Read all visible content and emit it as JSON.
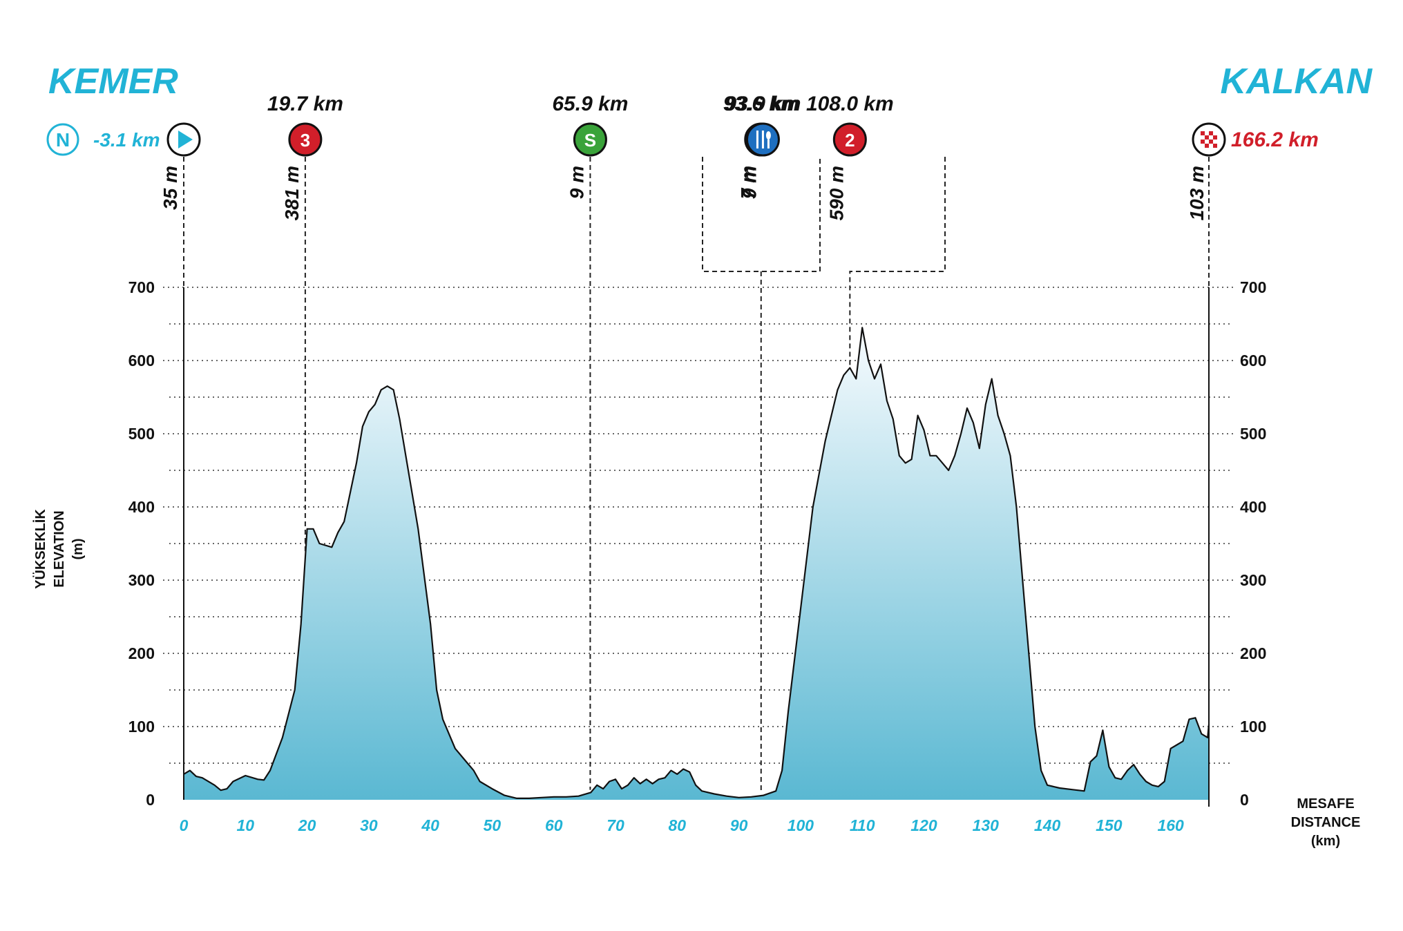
{
  "start_city": "KEMER",
  "finish_city": "KALKAN",
  "colors": {
    "accent": "#21b3d6",
    "finish_red": "#d11f2a",
    "kom_red": "#d11f2a",
    "sprint_green": "#3aa33a",
    "feed_blue": "#1e6fc0",
    "fill_top": "#f7fbfe",
    "fill_bottom": "#5ab8d2"
  },
  "axis_titles": {
    "y_tr": "YÜKSEKLİK",
    "y_en": "ELEVATION",
    "y_unit": "(m)",
    "x_tr": "MESAFE",
    "x_en": "DISTANCE",
    "x_unit": "(km)"
  },
  "markers": [
    {
      "id": "neutral",
      "km_label": "-3.1 km",
      "icon": "neutral-start-icon",
      "badge": "N"
    },
    {
      "id": "start",
      "km": 0,
      "km_label": "",
      "elev_label": "35 m",
      "icon": "start-icon"
    },
    {
      "id": "kom3",
      "km": 19.7,
      "km_label": "19.7 km",
      "elev_label": "381 m",
      "icon": "kom-cat3-icon",
      "badge": "3"
    },
    {
      "id": "sprint",
      "km": 65.9,
      "km_label": "65.9 km",
      "elev_label": "9 m",
      "icon": "sprint-icon",
      "badge": "S"
    },
    {
      "id": "bonus",
      "km": 93.6,
      "km_label": "93.6 km",
      "elev_label": "7 m",
      "icon": "bonus-sprint-icon"
    },
    {
      "id": "feed",
      "km": 93.9,
      "km_label": "93.9 km",
      "elev_label": "9 m",
      "icon": "feed-zone-icon"
    },
    {
      "id": "kom2",
      "km": 108.0,
      "km_label": "108.0 km",
      "elev_label": "590 m",
      "icon": "kom-cat2-icon",
      "badge": "2"
    },
    {
      "id": "finish",
      "km": 166.2,
      "km_label": "166.2 km",
      "elev_label": "103 m",
      "icon": "finish-flag-icon"
    }
  ],
  "chart_data": {
    "type": "area",
    "xlabel": "MESAFE DISTANCE (km)",
    "ylabel": "YÜKSEKLİK ELEVATION (m)",
    "xlim": [
      0,
      166.2
    ],
    "ylim": [
      0,
      700
    ],
    "xticks": [
      0,
      10,
      20,
      30,
      40,
      50,
      60,
      70,
      80,
      90,
      100,
      110,
      120,
      130,
      140,
      150,
      160
    ],
    "yticks": [
      0,
      100,
      200,
      300,
      400,
      500,
      600,
      700
    ],
    "grid": true,
    "x": [
      0,
      1,
      2,
      3,
      5,
      6,
      7,
      8,
      10,
      12,
      13,
      14,
      16,
      18,
      19,
      20,
      21,
      22,
      24,
      25,
      26,
      28,
      29,
      30,
      31,
      32,
      33,
      34,
      35,
      36,
      38,
      40,
      41,
      42,
      44,
      46,
      47,
      48,
      50,
      52,
      54,
      56,
      58,
      60,
      62,
      64,
      66,
      67,
      68,
      69,
      70,
      71,
      72,
      73,
      74,
      75,
      76,
      77,
      78,
      79,
      80,
      81,
      82,
      83,
      84,
      86,
      88,
      90,
      92,
      94,
      96,
      97,
      98,
      100,
      102,
      104,
      106,
      107,
      108,
      109,
      110,
      111,
      112,
      113,
      114,
      115,
      116,
      117,
      118,
      119,
      120,
      121,
      122,
      123,
      124,
      125,
      126,
      127,
      128,
      129,
      130,
      131,
      132,
      133,
      134,
      135,
      136,
      137,
      138,
      139,
      140,
      141,
      142,
      144,
      146,
      147,
      148,
      149,
      150,
      151,
      152,
      153,
      154,
      155,
      156,
      157,
      158,
      159,
      160,
      161,
      162,
      163,
      164,
      165,
      166,
      166.2
    ],
    "y": [
      35,
      40,
      32,
      30,
      20,
      13,
      15,
      25,
      33,
      28,
      27,
      40,
      85,
      150,
      240,
      370,
      370,
      350,
      345,
      365,
      380,
      460,
      510,
      530,
      540,
      560,
      565,
      560,
      520,
      470,
      370,
      240,
      150,
      110,
      70,
      50,
      40,
      25,
      15,
      6,
      2,
      2,
      3,
      4,
      4,
      5,
      10,
      20,
      15,
      25,
      28,
      15,
      20,
      30,
      22,
      28,
      22,
      28,
      30,
      40,
      35,
      42,
      38,
      20,
      12,
      8,
      5,
      3,
      4,
      6,
      12,
      40,
      120,
      260,
      400,
      490,
      560,
      580,
      590,
      575,
      645,
      600,
      575,
      595,
      545,
      520,
      470,
      460,
      465,
      525,
      505,
      470,
      470,
      460,
      450,
      470,
      500,
      535,
      515,
      480,
      540,
      575,
      525,
      500,
      470,
      400,
      300,
      200,
      100,
      40,
      20,
      18,
      16,
      14,
      12,
      52,
      60,
      95,
      45,
      30,
      28,
      40,
      48,
      35,
      25,
      20,
      18,
      25,
      70,
      75,
      80,
      110,
      112,
      90,
      85,
      103
    ]
  }
}
